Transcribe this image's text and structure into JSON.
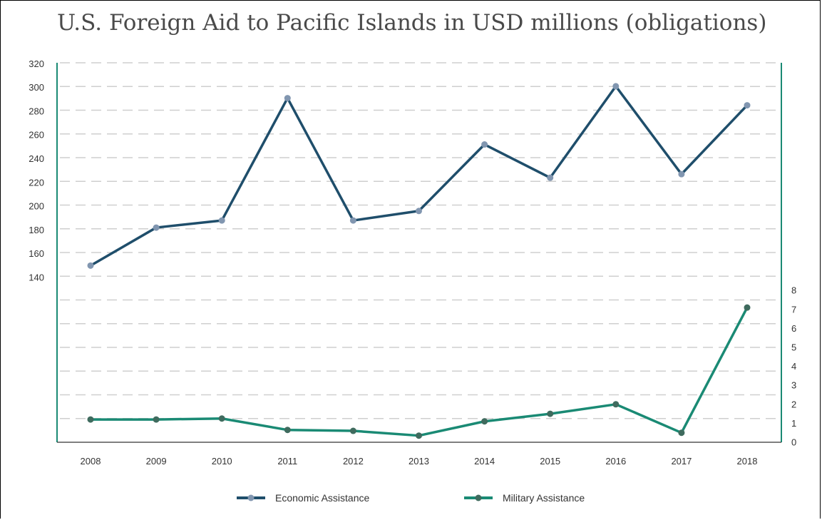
{
  "colors": {
    "economic": "#1f4e6b",
    "economic_marker": "#8196b0",
    "military": "#1a8a74",
    "military_marker": "#3f6b5e",
    "grid": "#cfcfcf",
    "axis": "#1a8a74"
  },
  "chart_data": {
    "type": "line",
    "title": "U.S. Foreign Aid to Pacific Islands in USD millions (obligations)",
    "categories": [
      "2008",
      "2009",
      "2010",
      "2011",
      "2012",
      "2013",
      "2014",
      "2015",
      "2016",
      "2017",
      "2018"
    ],
    "series": [
      {
        "name": "Economic Assistance",
        "axis": "left",
        "values": [
          150,
          182,
          188,
          291,
          188,
          196,
          252,
          224,
          301,
          227,
          285
        ]
      },
      {
        "name": "Military Assistance",
        "axis": "right",
        "values": [
          1.2,
          1.2,
          1.25,
          0.65,
          0.6,
          0.35,
          1.1,
          1.5,
          2.0,
          0.5,
          7.1
        ]
      }
    ],
    "left_axis": {
      "ticks": [
        "140",
        "160",
        "180",
        "200",
        "220",
        "240",
        "260",
        "280",
        "300",
        "320"
      ]
    },
    "right_axis": {
      "ticks": [
        "0",
        "1",
        "2",
        "3",
        "4",
        "5",
        "6",
        "7",
        "8"
      ]
    },
    "grid": true,
    "legend": "bottom"
  }
}
